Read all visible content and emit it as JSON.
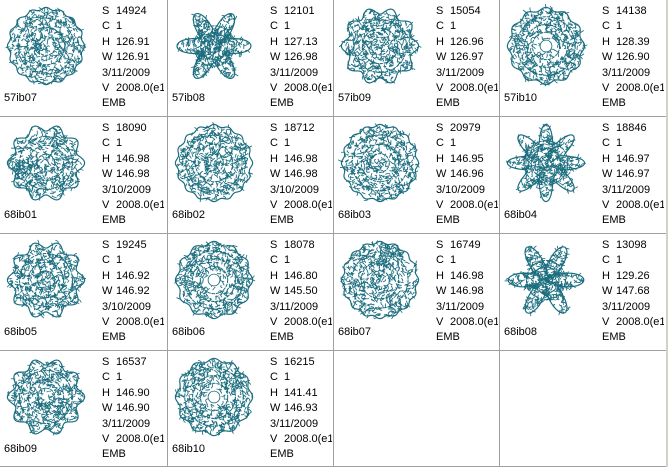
{
  "colors": {
    "stitch": "#1a6d7e",
    "grid_line": "#a0a0a0",
    "background": "#ffffff"
  },
  "labels": {
    "S": "S",
    "C": "C",
    "H": "H",
    "W": "W",
    "V": "V"
  },
  "designs": [
    {
      "file": "57ib07",
      "S": "14924",
      "C": "1",
      "H": "126.91",
      "W": "126.91",
      "date": "3/11/2009",
      "V": "2008.0(e1",
      "format": "EMB",
      "shape": "round-dense"
    },
    {
      "file": "57ib08",
      "S": "12101",
      "C": "1",
      "H": "127.13",
      "W": "126.98",
      "date": "3/11/2009",
      "V": "2008.0(e1",
      "format": "EMB",
      "shape": "flower-lobed"
    },
    {
      "file": "57ib09",
      "S": "15054",
      "C": "1",
      "H": "126.96",
      "W": "126.97",
      "date": "3/11/2009",
      "V": "2008.0(e1",
      "format": "EMB",
      "shape": "round-scalloped"
    },
    {
      "file": "57ib10",
      "S": "14138",
      "C": "1",
      "H": "128.39",
      "W": "126.90",
      "date": "3/11/2009",
      "V": "2008.0(e1",
      "format": "EMB",
      "shape": "round-open-center"
    },
    {
      "file": "68ib01",
      "S": "18090",
      "C": "1",
      "H": "146.98",
      "W": "146.98",
      "date": "3/10/2009",
      "V": "2008.0(e1",
      "format": "EMB",
      "shape": "round-scalloped"
    },
    {
      "file": "68ib02",
      "S": "18712",
      "C": "1",
      "H": "146.98",
      "W": "146.98",
      "date": "3/10/2009",
      "V": "2008.0(e1",
      "format": "EMB",
      "shape": "round-dense"
    },
    {
      "file": "68ib03",
      "S": "20979",
      "C": "1",
      "H": "146.95",
      "W": "146.96",
      "date": "3/10/2009",
      "V": "2008.0(e1",
      "format": "EMB",
      "shape": "round-dense"
    },
    {
      "file": "68ib04",
      "S": "18846",
      "C": "1",
      "H": "146.97",
      "W": "146.97",
      "date": "3/11/2009",
      "V": "2008.0(e1",
      "format": "EMB",
      "shape": "star-lobed"
    },
    {
      "file": "68ib05",
      "S": "19245",
      "C": "1",
      "H": "146.92",
      "W": "146.92",
      "date": "3/10/2009",
      "V": "2008.0(e1",
      "format": "EMB",
      "shape": "round-scalloped"
    },
    {
      "file": "68ib06",
      "S": "18078",
      "C": "1",
      "H": "146.80",
      "W": "145.50",
      "date": "3/11/2009",
      "V": "2008.0(e1",
      "format": "EMB",
      "shape": "round-open-center"
    },
    {
      "file": "68ib07",
      "S": "16749",
      "C": "1",
      "H": "146.98",
      "W": "146.98",
      "date": "3/11/2009",
      "V": "2008.0(e1",
      "format": "EMB",
      "shape": "round-dense"
    },
    {
      "file": "68ib08",
      "S": "13098",
      "C": "1",
      "H": "129.26",
      "W": "147.68",
      "date": "3/11/2009",
      "V": "2008.0(e1",
      "format": "EMB",
      "shape": "hexagon-star"
    },
    {
      "file": "68ib09",
      "S": "16537",
      "C": "1",
      "H": "146.90",
      "W": "146.90",
      "date": "3/11/2009",
      "V": "2008.0(e1",
      "format": "EMB",
      "shape": "round-scalloped"
    },
    {
      "file": "68ib10",
      "S": "16215",
      "C": "1",
      "H": "141.41",
      "W": "146.93",
      "date": "3/11/2009",
      "V": "2008.0(e1",
      "format": "EMB",
      "shape": "round-open-center"
    }
  ]
}
